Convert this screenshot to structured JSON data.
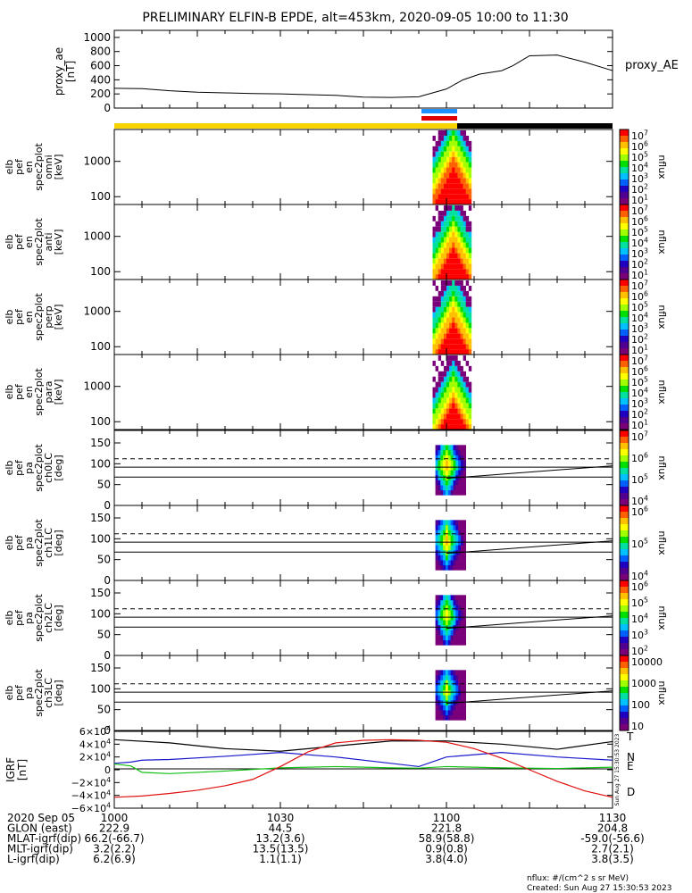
{
  "title": "PRELIMINARY ELFIN-B EPDE, alt=453km, 2020-09-05 10:00 to 11:30",
  "ae_panel": {
    "ylabel_lines": [
      "proxy_ae",
      "[nT]"
    ],
    "yticks": [
      "0",
      "200",
      "400",
      "600",
      "800",
      "1000"
    ],
    "legend": "proxy_AE"
  },
  "spec_panels": [
    {
      "ylabel_lines": [
        "elb",
        "pef",
        "en",
        "spec2plot",
        "omni",
        "[keV]"
      ],
      "yticks": [
        "100",
        "1000"
      ],
      "cbar_ticks": [
        "10^7",
        "10^6",
        "10^5",
        "10^4",
        "10^3",
        "10^2",
        "10^1"
      ],
      "cbar_label": "nflux"
    },
    {
      "ylabel_lines": [
        "elb",
        "pef",
        "en",
        "spec2plot",
        "anti",
        "[keV]"
      ],
      "yticks": [
        "100",
        "1000"
      ],
      "cbar_ticks": [
        "10^7",
        "10^6",
        "10^5",
        "10^4",
        "10^3",
        "10^2",
        "10^1"
      ],
      "cbar_label": "nflux"
    },
    {
      "ylabel_lines": [
        "elb",
        "pef",
        "en",
        "spec2plot",
        "perp",
        "[keV]"
      ],
      "yticks": [
        "100",
        "1000"
      ],
      "cbar_ticks": [
        "10^7",
        "10^6",
        "10^5",
        "10^4",
        "10^3",
        "10^2",
        "10^1"
      ],
      "cbar_label": "nflux"
    },
    {
      "ylabel_lines": [
        "elb",
        "pef",
        "en",
        "spec2plot",
        "para",
        "[keV]"
      ],
      "yticks": [
        "100",
        "1000"
      ],
      "cbar_ticks": [
        "10^7",
        "10^6",
        "10^5",
        "10^4",
        "10^3",
        "10^2",
        "10^1"
      ],
      "cbar_label": "nflux"
    }
  ],
  "pa_panels": [
    {
      "ylabel_lines": [
        "elb",
        "pef",
        "pa",
        "spec2plot",
        "ch0LC",
        "[deg]"
      ],
      "yticks": [
        "0",
        "50",
        "100",
        "150"
      ],
      "cbar_ticks": [
        "10^7",
        "10^6",
        "10^5",
        "10^4"
      ],
      "cbar_label": "nflux"
    },
    {
      "ylabel_lines": [
        "elb",
        "pef",
        "pa",
        "spec2plot",
        "ch1LC",
        "[deg]"
      ],
      "yticks": [
        "0",
        "50",
        "100",
        "150"
      ],
      "cbar_ticks": [
        "10^6",
        "10^5",
        "10^4"
      ],
      "cbar_label": "nflux"
    },
    {
      "ylabel_lines": [
        "elb",
        "pef",
        "pa",
        "spec2plot",
        "ch2LC",
        "[deg]"
      ],
      "yticks": [
        "0",
        "50",
        "100",
        "150"
      ],
      "cbar_ticks": [
        "10^6",
        "10^5",
        "10^4",
        "10^3",
        "10^2"
      ],
      "cbar_label": "nflux"
    },
    {
      "ylabel_lines": [
        "elb",
        "pef",
        "pa",
        "spec2plot",
        "ch3LC",
        "[deg]"
      ],
      "yticks": [
        "0",
        "50",
        "100",
        "150"
      ],
      "cbar_ticks": [
        "10000",
        "1000",
        "100",
        "10"
      ],
      "cbar_label": "nflux"
    }
  ],
  "field_panel": {
    "ylabel_lines": [
      "IGRF",
      "[nT]"
    ],
    "yticks": [
      "6×10^4",
      "4×10^4",
      "2×10^4",
      "0",
      "−2×10^4",
      "−4×10^4",
      "−6×10^4"
    ],
    "components": [
      "T",
      "N",
      "E",
      "D"
    ],
    "created_vertical": "Sun Aug 27 15:30:53 2023"
  },
  "xaxis": {
    "ticks": [
      "1000",
      "1030",
      "1100",
      "1130"
    ],
    "rows": [
      {
        "label": "2020 Sep 05",
        "values": [
          "1000",
          "1030",
          "1100",
          "1130"
        ]
      },
      {
        "label": "GLON (east)",
        "values": [
          "222.9",
          "44.5",
          "221.8",
          "204.8"
        ]
      },
      {
        "label": "MLAT-igrf(dip)",
        "values": [
          "66.2(-66.7)",
          "13.2(3.6)",
          "58.9(58.8)",
          "-59.0(-56.6)"
        ]
      },
      {
        "label": "MLT-igrf(dip)",
        "values": [
          "3.2(2.2)",
          "13.5(13.5)",
          "0.9(0.8)",
          "2.7(2.1)"
        ]
      },
      {
        "label": "L-igrf(dip)",
        "values": [
          "6.2(6.9)",
          "1.1(1.1)",
          "3.8(4.0)",
          "3.8(3.5)"
        ]
      }
    ]
  },
  "footer": {
    "units": "nflux: #/(cm^2 s sr MeV)",
    "created": "Created: Sun Aug 27 15:30:53 2023"
  },
  "colors": {
    "sunlit_bar": "#f5d400",
    "shadow_bar": "#000000",
    "science_zone_top": "#1e90ff",
    "science_zone_bottom": "#e00000",
    "T": "#000000",
    "N": "#1a1acc",
    "E": "#10c010",
    "D": "#e01010"
  },
  "chart_data": {
    "type": "line",
    "x_unit": "UT hhmm",
    "x_range": [
      "1000",
      "1130"
    ],
    "series": [
      {
        "name": "proxy_AE",
        "x_min": [
          0,
          5,
          10,
          15,
          20,
          25,
          30,
          35,
          40,
          45,
          50,
          55,
          60,
          63,
          66,
          70,
          72,
          75,
          80,
          85,
          90
        ],
        "values": [
          280,
          275,
          245,
          225,
          215,
          205,
          200,
          190,
          180,
          155,
          150,
          160,
          270,
          400,
          480,
          530,
          600,
          740,
          750,
          650,
          530
        ]
      }
    ],
    "ae_ylim": [
      0,
      1100
    ],
    "spec_ylim_keV": [
      60,
      8000
    ],
    "pa_ylim_deg": [
      0,
      180
    ],
    "igrf_ylim_nT": [
      -60000,
      60000
    ],
    "igrf_components": {
      "T": {
        "x_min": [
          0,
          10,
          20,
          30,
          40,
          50,
          60,
          70,
          80,
          90
        ],
        "values": [
          47000,
          42000,
          33000,
          29000,
          37000,
          45000,
          45000,
          40000,
          32000,
          44000
        ]
      },
      "N": {
        "x_min": [
          0,
          3,
          5,
          10,
          20,
          30,
          40,
          50,
          55,
          60,
          70,
          80,
          90
        ],
        "values": [
          10000,
          12000,
          15000,
          16000,
          21000,
          27000,
          20000,
          10000,
          5000,
          20000,
          27000,
          20000,
          15000
        ]
      },
      "E": {
        "x_min": [
          0,
          3,
          5,
          10,
          20,
          30,
          40,
          50,
          55,
          60,
          70,
          80,
          90
        ],
        "values": [
          9000,
          6000,
          -4000,
          -6000,
          -2000,
          3000,
          5000,
          3000,
          2500,
          5000,
          3000,
          2000,
          4000
        ]
      },
      "D": {
        "x_min": [
          0,
          5,
          10,
          15,
          20,
          25,
          30,
          35,
          40,
          45,
          50,
          55,
          60,
          65,
          70,
          75,
          80,
          85,
          90
        ],
        "values": [
          -43000,
          -41000,
          -37000,
          -32000,
          -25000,
          -15000,
          5000,
          28000,
          42000,
          46000,
          47000,
          46000,
          43000,
          33000,
          18000,
          0,
          -18000,
          -33000,
          -43000
        ]
      }
    },
    "loss_cone_lines_deg": {
      "x_min": [
        60,
        90
      ],
      "start": 65,
      "end": 95
    },
    "reference_lines_deg": {
      "solid_upper": 92,
      "solid_lower": 68,
      "dashed": 112
    },
    "sunlit_interval_min": [
      0,
      64
    ],
    "shadow_interval_min": [
      64,
      90
    ],
    "science_zone_min": [
      58,
      65
    ]
  }
}
